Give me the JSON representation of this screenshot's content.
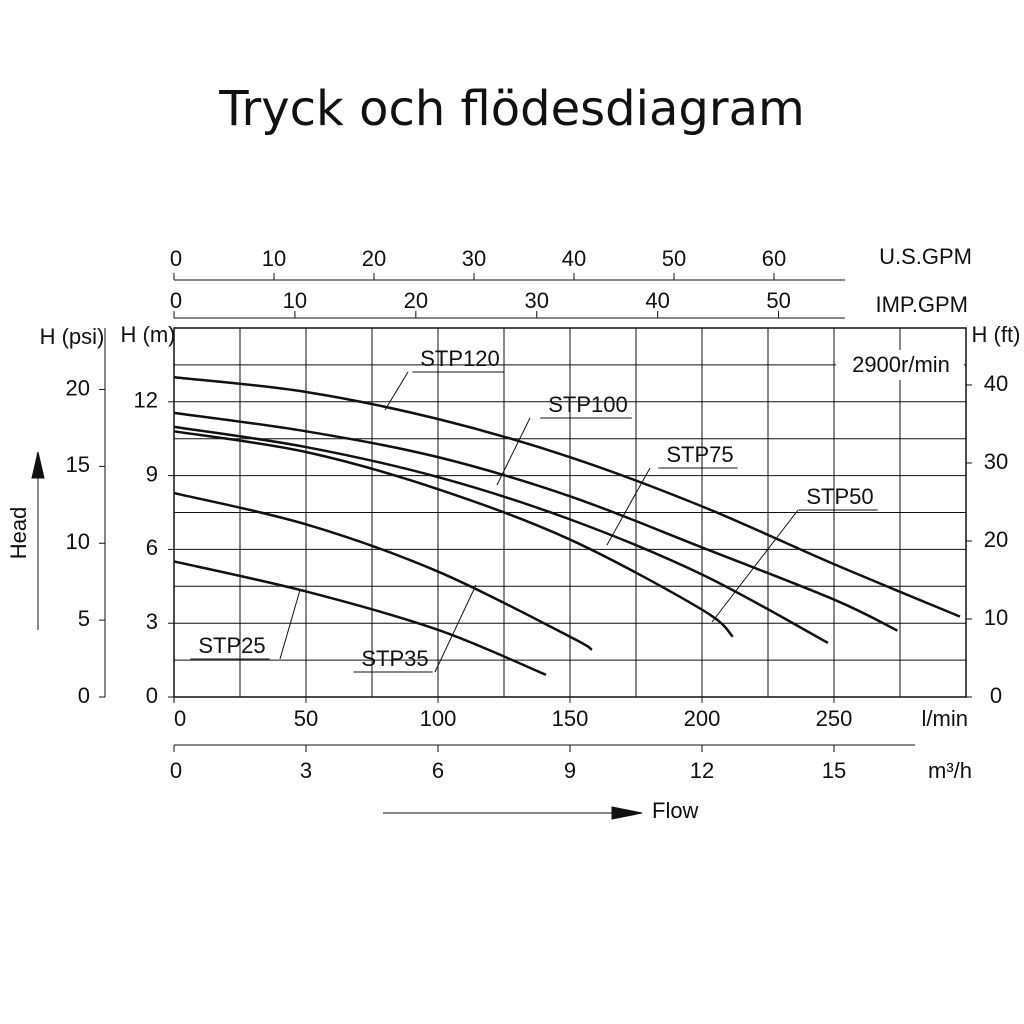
{
  "chart_data": {
    "type": "line",
    "title": "Tryck och flödesdiagram",
    "x_label": "l/min",
    "y_label": "H (m)",
    "y2_label": "H (ft)",
    "head_label": "Head",
    "flow_label": "Flow",
    "annotation": "2900r/min",
    "xlim": [
      0,
      300
    ],
    "xticks": [
      0,
      50,
      100,
      150,
      200,
      250
    ],
    "ylim": [
      0,
      15
    ],
    "yticks": [
      0,
      3,
      6,
      9,
      12
    ],
    "y2lim": [
      0,
      47.3
    ],
    "y2ticks": [
      0,
      10,
      20,
      30,
      40
    ],
    "grid": true,
    "secondary_axes": [
      {
        "label": "U.S.GPM",
        "side": "top",
        "lim": [
          0,
          79.2
        ],
        "ticks": [
          0,
          10,
          20,
          30,
          40,
          50,
          60
        ]
      },
      {
        "label": "IMP.GPM",
        "side": "top-inner",
        "lim": [
          0,
          65.5
        ],
        "ticks": [
          0,
          10,
          20,
          30,
          40,
          50
        ]
      },
      {
        "label": "m³/h",
        "side": "bottom",
        "lim": [
          0,
          18
        ],
        "ticks": [
          0,
          3,
          6,
          9,
          12,
          15
        ]
      },
      {
        "label": "H (psi)",
        "side": "left",
        "lim": [
          0,
          24
        ],
        "ticks": [
          0,
          5,
          10,
          15,
          20
        ]
      }
    ],
    "series": [
      {
        "name": "STP120",
        "color": "#111111",
        "x": [
          0,
          50,
          100,
          150,
          200,
          250,
          297.7
        ],
        "values": [
          13.0,
          12.4,
          11.3,
          9.75,
          7.75,
          5.4,
          3.27
        ]
      },
      {
        "name": "STP100",
        "color": "#111111",
        "x": [
          0,
          50,
          100,
          150,
          200,
          250,
          274
        ],
        "values": [
          11.55,
          10.8,
          9.75,
          8.16,
          6.08,
          3.96,
          2.7
        ]
      },
      {
        "name": "STP75",
        "color": "#111111",
        "x": [
          0,
          50,
          100,
          150,
          200,
          247.7
        ],
        "values": [
          10.98,
          10.16,
          8.94,
          7.22,
          4.98,
          2.2
        ]
      },
      {
        "name": "STP50",
        "color": "#111111",
        "x": [
          0,
          50,
          100,
          150,
          200,
          211.7
        ],
        "values": [
          10.8,
          9.96,
          8.45,
          6.4,
          3.55,
          2.45
        ]
      },
      {
        "name": "STP35",
        "color": "#111111",
        "x": [
          0,
          50,
          100,
          150,
          158.3
        ],
        "values": [
          8.29,
          7.02,
          5.1,
          2.45,
          1.92
        ]
      },
      {
        "name": "STP25",
        "color": "#111111",
        "x": [
          0,
          50,
          100,
          140.9
        ],
        "values": [
          5.51,
          4.29,
          2.73,
          0.9
        ]
      }
    ]
  }
}
